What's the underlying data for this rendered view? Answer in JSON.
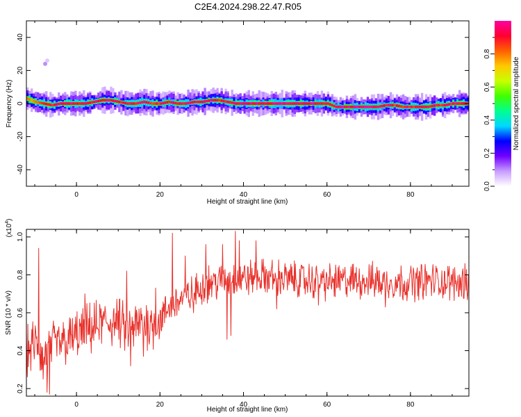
{
  "title": "C2E4.2024.298.22.47.R05",
  "chart_data": [
    {
      "type": "heatmap",
      "xlabel": "Height of straight line (km)",
      "ylabel": "Frequency (Hz)",
      "xlim": [
        -12,
        94
      ],
      "ylim": [
        -50,
        50
      ],
      "xticks": [
        0,
        20,
        40,
        60,
        80
      ],
      "yticks": [
        -40,
        -20,
        0,
        20,
        40
      ],
      "colorbar": {
        "label": "Normalized spectral amplitude",
        "range": [
          0,
          1
        ],
        "ticks": [
          0.0,
          0.2,
          0.4,
          0.6,
          0.8
        ],
        "tick_labels": [
          "0.0",
          "0.2",
          "0.4",
          "0.6",
          "0.8"
        ],
        "colormap": [
          "#ffffff",
          "#c89cff",
          "#7000ff",
          "#0000ff",
          "#00d8ff",
          "#00ff90",
          "#40ff00",
          "#c8ff00",
          "#ffc800",
          "#ff6000",
          "#ff0030",
          "#ff00a0"
        ]
      },
      "ridge": {
        "x": [
          -12,
          -10,
          -8,
          -6,
          -4,
          -2,
          0,
          2,
          4,
          6,
          8,
          10,
          12,
          14,
          16,
          18,
          20,
          22,
          24,
          26,
          28,
          30,
          32,
          34,
          36,
          38,
          40,
          42,
          44,
          46,
          48,
          50,
          52,
          54,
          56,
          58,
          60,
          62,
          64,
          66,
          68,
          70,
          72,
          74,
          76,
          78,
          80,
          82,
          84,
          86,
          88,
          90,
          92,
          94
        ],
        "frequency": [
          3,
          1,
          0,
          -1,
          0,
          0,
          0,
          0,
          1,
          2,
          2,
          1,
          0,
          0,
          1,
          0,
          0,
          1,
          0,
          0,
          1,
          1,
          2,
          2,
          1,
          0,
          0,
          0,
          0,
          0,
          0,
          0,
          0,
          0,
          0,
          0,
          0,
          -2,
          -2,
          -2,
          -2,
          -2,
          -2,
          -1,
          -1,
          -2,
          -2,
          -2,
          -2,
          -1,
          -1,
          0,
          0,
          0
        ],
        "amplitude": [
          0.5,
          0.6,
          0.7,
          0.75,
          0.85,
          0.9,
          0.85,
          0.8,
          0.85,
          0.9,
          0.85,
          0.8,
          0.85,
          0.85,
          0.8,
          0.75,
          0.8,
          0.85,
          0.85,
          0.8,
          0.85,
          0.9,
          0.85,
          0.8,
          0.8,
          0.85,
          0.9,
          0.9,
          0.9,
          0.9,
          0.95,
          0.95,
          0.95,
          0.9,
          0.9,
          0.85,
          0.8,
          0.8,
          0.95,
          0.95,
          0.95,
          0.9,
          0.85,
          0.8,
          0.75,
          0.8,
          0.8,
          0.75,
          0.8,
          0.75,
          0.75,
          0.8,
          0.85,
          0.85
        ]
      },
      "outliers": [
        {
          "x": -7.5,
          "frequency": 24,
          "amplitude": 0.1
        },
        {
          "x": -7,
          "frequency": 26,
          "amplitude": 0.05
        }
      ]
    },
    {
      "type": "line",
      "xlabel": "Height of straight line (km)",
      "ylabel": "SNR (10 * v/v)",
      "y_multiplier": "(x10",
      "y_multiplier_exp": "4",
      "y_multiplier_close": ")",
      "xlim": [
        -12,
        94
      ],
      "ylim": [
        0.16,
        1.04
      ],
      "xticks": [
        0,
        20,
        40,
        60,
        80
      ],
      "yticks": [
        0.2,
        0.4,
        0.6,
        0.8,
        1.0
      ],
      "ytick_labels": [
        "0.2",
        "0.4",
        "0.6",
        "0.8",
        "1.0"
      ],
      "color": "#e8302a",
      "trend": {
        "x": [
          -12,
          -10,
          -8,
          -6,
          -4,
          -2,
          0,
          2,
          4,
          6,
          8,
          10,
          12,
          14,
          16,
          18,
          20,
          22,
          24,
          26,
          28,
          30,
          32,
          34,
          36,
          38,
          40,
          45,
          50,
          55,
          60,
          65,
          70,
          75,
          80,
          85,
          90,
          94
        ],
        "snr": [
          0.38,
          0.44,
          0.36,
          0.42,
          0.44,
          0.45,
          0.48,
          0.5,
          0.52,
          0.54,
          0.55,
          0.55,
          0.5,
          0.52,
          0.55,
          0.54,
          0.56,
          0.62,
          0.66,
          0.68,
          0.7,
          0.74,
          0.76,
          0.76,
          0.77,
          0.78,
          0.78,
          0.79,
          0.78,
          0.77,
          0.76,
          0.77,
          0.77,
          0.76,
          0.76,
          0.77,
          0.76,
          0.76
        ]
      },
      "noise_amplitude": 0.075,
      "spikes": [
        {
          "x": -12,
          "snr": 0.5
        },
        {
          "x": -9,
          "snr": 0.94
        },
        {
          "x": -7,
          "snr": 0.18
        },
        {
          "x": -6.5,
          "snr": 0.17
        },
        {
          "x": -8,
          "snr": 0.25
        },
        {
          "x": 2,
          "snr": 0.7
        },
        {
          "x": 12,
          "snr": 0.82
        },
        {
          "x": 13,
          "snr": 0.32
        },
        {
          "x": 16,
          "snr": 0.37
        },
        {
          "x": 19,
          "snr": 0.73
        },
        {
          "x": 23,
          "snr": 1.02
        },
        {
          "x": 26,
          "snr": 0.9
        },
        {
          "x": 28,
          "snr": 0.6
        },
        {
          "x": 31,
          "snr": 0.96
        },
        {
          "x": 35,
          "snr": 0.96
        },
        {
          "x": 37,
          "snr": 0.48
        },
        {
          "x": 38,
          "snr": 1.03
        },
        {
          "x": 39,
          "snr": 0.98
        },
        {
          "x": 36,
          "snr": 0.46
        },
        {
          "x": 43,
          "snr": 0.98
        },
        {
          "x": 48,
          "snr": 0.62
        },
        {
          "x": 58,
          "snr": 0.64
        },
        {
          "x": 74,
          "snr": 0.63
        },
        {
          "x": 93,
          "snr": 0.86
        }
      ]
    }
  ]
}
